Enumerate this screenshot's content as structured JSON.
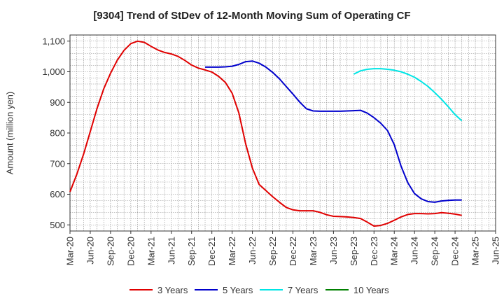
{
  "chart_data": {
    "type": "line",
    "title": "[9304]  Trend of StDev of 12-Month Moving Sum of Operating CF",
    "ylabel": "Amount (million yen)",
    "ylim": [
      480,
      1120
    ],
    "yticks": [
      500,
      600,
      700,
      800,
      900,
      1000,
      1100
    ],
    "ytick_labels": [
      "500",
      "600",
      "700",
      "800",
      "900",
      "1,000",
      "1,100"
    ],
    "x_categories": [
      "Mar-20",
      "Jun-20",
      "Sep-20",
      "Dec-20",
      "Mar-21",
      "Jun-21",
      "Sep-21",
      "Dec-21",
      "Mar-22",
      "Jun-22",
      "Sep-22",
      "Dec-22",
      "Mar-23",
      "Jun-23",
      "Sep-23",
      "Dec-23",
      "Mar-24",
      "Jun-24",
      "Sep-24",
      "Dec-24",
      "Mar-25",
      "Jun-25"
    ],
    "x_unit": "month index from Mar-20",
    "grid": true,
    "legend_position": "bottom",
    "series": [
      {
        "name": "3 Years",
        "color": "#e00000",
        "points": [
          [
            0,
            608
          ],
          [
            1,
            665
          ],
          [
            2,
            730
          ],
          [
            3,
            805
          ],
          [
            4,
            880
          ],
          [
            5,
            945
          ],
          [
            6,
            995
          ],
          [
            7,
            1038
          ],
          [
            8,
            1070
          ],
          [
            9,
            1092
          ],
          [
            10,
            1100
          ],
          [
            11,
            1096
          ],
          [
            12,
            1083
          ],
          [
            13,
            1071
          ],
          [
            14,
            1063
          ],
          [
            15,
            1058
          ],
          [
            16,
            1050
          ],
          [
            17,
            1037
          ],
          [
            18,
            1022
          ],
          [
            19,
            1012
          ],
          [
            20,
            1006
          ],
          [
            21,
            999
          ],
          [
            22,
            985
          ],
          [
            23,
            965
          ],
          [
            24,
            930
          ],
          [
            25,
            865
          ],
          [
            26,
            765
          ],
          [
            27,
            685
          ],
          [
            28,
            632
          ],
          [
            29,
            612
          ],
          [
            30,
            592
          ],
          [
            31,
            574
          ],
          [
            32,
            557
          ],
          [
            33,
            549
          ],
          [
            34,
            546
          ],
          [
            35,
            546
          ],
          [
            36,
            546
          ],
          [
            37,
            541
          ],
          [
            38,
            533
          ],
          [
            39,
            528
          ],
          [
            40,
            527
          ],
          [
            41,
            526
          ],
          [
            42,
            524
          ],
          [
            43,
            521
          ],
          [
            44,
            509
          ],
          [
            45,
            496
          ],
          [
            46,
            498
          ],
          [
            47,
            505
          ],
          [
            48,
            515
          ],
          [
            49,
            526
          ],
          [
            50,
            534
          ],
          [
            51,
            537
          ],
          [
            52,
            537
          ],
          [
            53,
            536
          ],
          [
            54,
            537
          ],
          [
            55,
            540
          ],
          [
            56,
            538
          ],
          [
            57,
            535
          ],
          [
            58,
            531
          ]
        ]
      },
      {
        "name": "5 Years",
        "color": "#0000cc",
        "points": [
          [
            20,
            1015
          ],
          [
            21,
            1015
          ],
          [
            22,
            1015
          ],
          [
            23,
            1016
          ],
          [
            24,
            1018
          ],
          [
            25,
            1024
          ],
          [
            26,
            1033
          ],
          [
            27,
            1035
          ],
          [
            28,
            1028
          ],
          [
            29,
            1015
          ],
          [
            30,
            998
          ],
          [
            31,
            977
          ],
          [
            32,
            952
          ],
          [
            33,
            927
          ],
          [
            34,
            901
          ],
          [
            35,
            879
          ],
          [
            36,
            872
          ],
          [
            37,
            871
          ],
          [
            38,
            871
          ],
          [
            39,
            871
          ],
          [
            40,
            871
          ],
          [
            41,
            872
          ],
          [
            42,
            873
          ],
          [
            43,
            874
          ],
          [
            44,
            865
          ],
          [
            45,
            850
          ],
          [
            46,
            832
          ],
          [
            47,
            808
          ],
          [
            48,
            762
          ],
          [
            49,
            692
          ],
          [
            50,
            638
          ],
          [
            51,
            602
          ],
          [
            52,
            585
          ],
          [
            53,
            576
          ],
          [
            54,
            574
          ],
          [
            55,
            578
          ],
          [
            56,
            580
          ],
          [
            57,
            581
          ],
          [
            58,
            581
          ]
        ]
      },
      {
        "name": "7 Years",
        "color": "#00e5e5",
        "points": [
          [
            42,
            992
          ],
          [
            43,
            1003
          ],
          [
            44,
            1008
          ],
          [
            45,
            1010
          ],
          [
            46,
            1010
          ],
          [
            47,
            1008
          ],
          [
            48,
            1005
          ],
          [
            49,
            1000
          ],
          [
            50,
            992
          ],
          [
            51,
            982
          ],
          [
            52,
            968
          ],
          [
            53,
            952
          ],
          [
            54,
            932
          ],
          [
            55,
            910
          ],
          [
            56,
            886
          ],
          [
            57,
            860
          ],
          [
            58,
            840
          ]
        ]
      },
      {
        "name": "10 Years",
        "color": "#008000",
        "points": []
      }
    ]
  }
}
